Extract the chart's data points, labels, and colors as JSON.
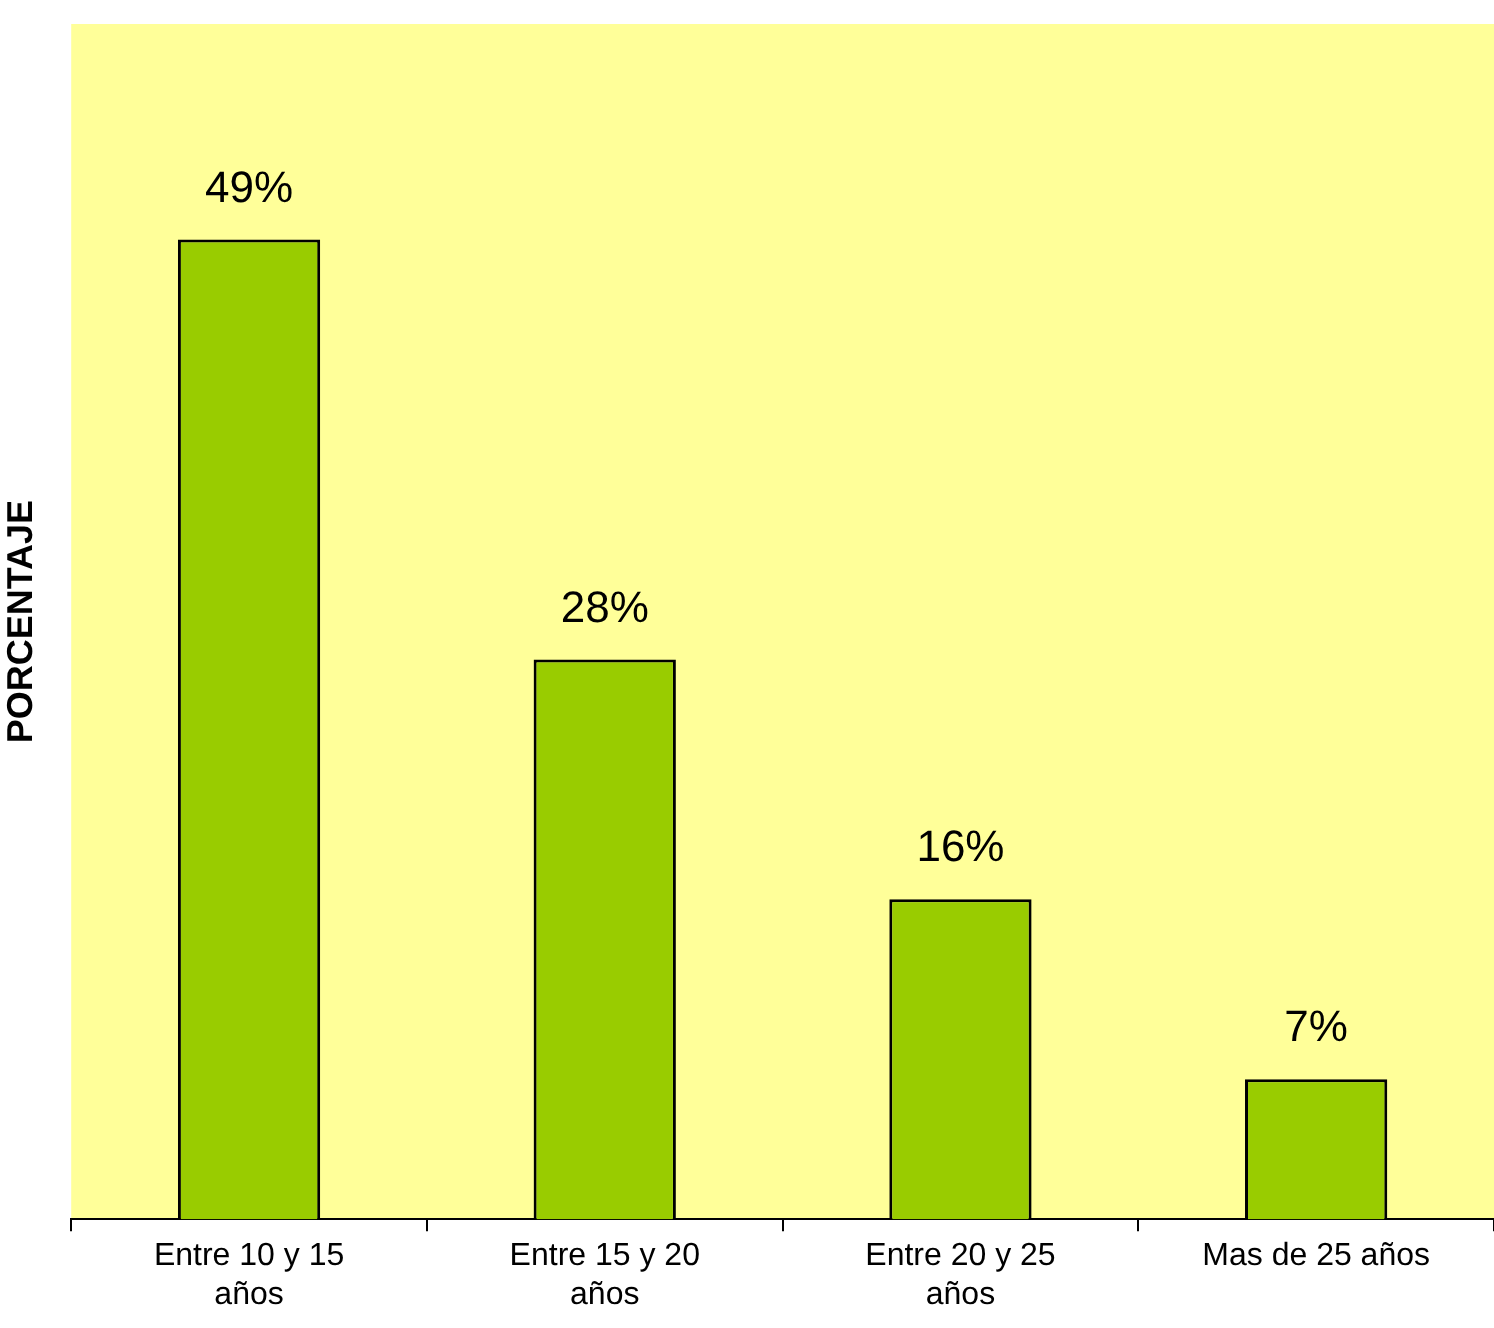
{
  "chart_data": {
    "type": "bar",
    "ylabel": "PORCENTAJE",
    "categories": [
      "Entre 10 y 15 años",
      "Entre 15 y 20 años",
      "Entre 20 y 25 años",
      "Mas de 25 años"
    ],
    "values": [
      49,
      28,
      16,
      7
    ],
    "value_labels": [
      "49%",
      "28%",
      "16%",
      "7%"
    ],
    "color": "#99cc00",
    "grid": false,
    "legend": false
  }
}
